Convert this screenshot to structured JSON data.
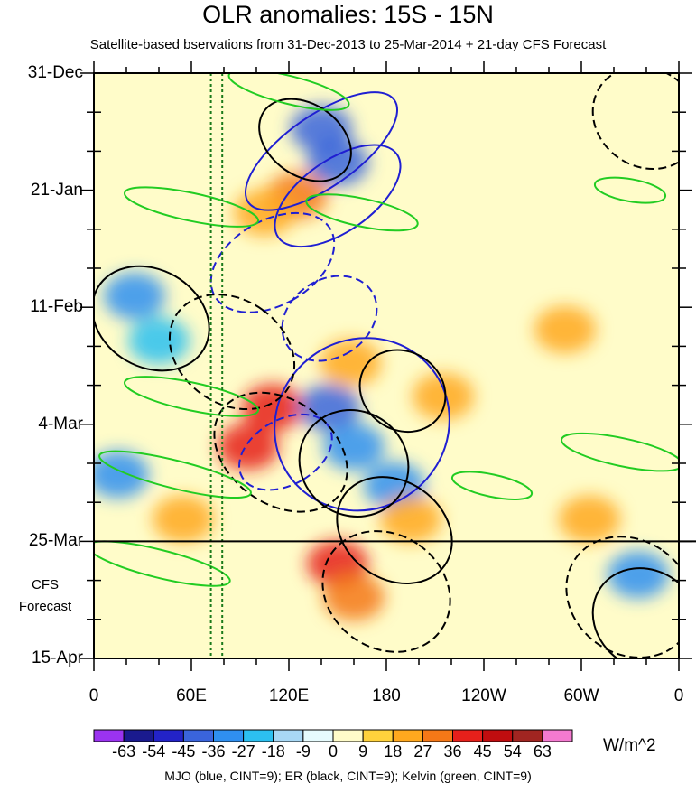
{
  "chart_data": {
    "type": "heatmap",
    "title": "OLR anomalies: 15S - 15N",
    "subtitle": "Satellite-based bservations from 31-Dec-2013 to 25-Mar-2014 + 21-day CFS Forecast",
    "x_tick_labels": [
      "0",
      "60E",
      "120E",
      "180",
      "120W",
      "60W",
      "0"
    ],
    "x_tick_longitudes": [
      0,
      60,
      120,
      180,
      240,
      300,
      360
    ],
    "y_tick_labels": [
      "31-Dec",
      "21-Jan",
      "11-Feb",
      "4-Mar",
      "25-Mar",
      "15-Apr"
    ],
    "y_tick_days": [
      0,
      21,
      42,
      63,
      84,
      105
    ],
    "observation_end_day": 84,
    "forecast_label_line1": "CFS",
    "forecast_label_line2": "Forecast",
    "reference_longitudes_dotted": [
      72,
      79
    ],
    "colorbar": {
      "tick_labels": [
        "-63",
        "-54",
        "-45",
        "-36",
        "-27",
        "-18",
        "-9",
        "0",
        "9",
        "18",
        "27",
        "36",
        "45",
        "54",
        "63"
      ],
      "colors": [
        "#9b33f0",
        "#1a1a8e",
        "#2323c8",
        "#3a64dc",
        "#2f8ff0",
        "#2cc0f0",
        "#a8d8f5",
        "#e6fbfd",
        "#fffcc9",
        "#ffd23c",
        "#ffa81e",
        "#f57817",
        "#e6201b",
        "#c00d0f",
        "#a12521",
        "#f47ad0"
      ],
      "units": "W/m^2"
    },
    "anomaly_blobs": [
      {
        "lon": 140,
        "day": 10,
        "value": -45
      },
      {
        "lon": 150,
        "day": 16,
        "value": -40
      },
      {
        "lon": 125,
        "day": 22,
        "value": 32
      },
      {
        "lon": 105,
        "day": 25,
        "value": 25
      },
      {
        "lon": 25,
        "day": 40,
        "value": -30
      },
      {
        "lon": 40,
        "day": 48,
        "value": -25
      },
      {
        "lon": 110,
        "day": 60,
        "value": 38
      },
      {
        "lon": 95,
        "day": 67,
        "value": 36
      },
      {
        "lon": 145,
        "day": 60,
        "value": -38
      },
      {
        "lon": 158,
        "day": 52,
        "value": 22
      },
      {
        "lon": 160,
        "day": 67,
        "value": -28
      },
      {
        "lon": 185,
        "day": 74,
        "value": -32
      },
      {
        "lon": 215,
        "day": 58,
        "value": 22
      },
      {
        "lon": 150,
        "day": 88,
        "value": 42
      },
      {
        "lon": 160,
        "day": 94,
        "value": 34
      },
      {
        "lon": 15,
        "day": 72,
        "value": -28
      },
      {
        "lon": 290,
        "day": 46,
        "value": 20
      },
      {
        "lon": 305,
        "day": 80,
        "value": 22
      },
      {
        "lon": 335,
        "day": 90,
        "value": -30
      },
      {
        "lon": 55,
        "day": 80,
        "value": 25
      },
      {
        "lon": 195,
        "day": 80,
        "value": 22
      }
    ],
    "filtered_contours": [
      {
        "wave": "MJO",
        "sign": "negative",
        "lon": 140,
        "day": 14,
        "rx": 22,
        "ry": 16,
        "angle": 55
      },
      {
        "wave": "MJO",
        "sign": "negative",
        "lon": 150,
        "day": 22,
        "rx": 22,
        "ry": 13,
        "angle": 55
      },
      {
        "wave": "MJO",
        "sign": "negative",
        "lon": 165,
        "day": 63,
        "rx": 52,
        "ry": 16,
        "angle": 52
      },
      {
        "wave": "MJO",
        "sign": "positive",
        "lon": 110,
        "day": 34,
        "rx": 26,
        "ry": 12,
        "angle": 60
      },
      {
        "wave": "MJO",
        "sign": "positive",
        "lon": 145,
        "day": 44,
        "rx": 24,
        "ry": 9,
        "angle": 58
      },
      {
        "wave": "MJO",
        "sign": "positive",
        "lon": 118,
        "day": 68,
        "rx": 20,
        "ry": 9,
        "angle": 60
      },
      {
        "wave": "ER",
        "sign": "negative",
        "lon": 130,
        "day": 12,
        "rx": 22,
        "ry": 9,
        "angle": -55
      },
      {
        "wave": "ER",
        "sign": "negative",
        "lon": 35,
        "day": 44,
        "rx": 30,
        "ry": 11,
        "angle": -60
      },
      {
        "wave": "ER",
        "sign": "negative",
        "lon": 190,
        "day": 57,
        "rx": 24,
        "ry": 8,
        "angle": -55
      },
      {
        "wave": "ER",
        "sign": "negative",
        "lon": 160,
        "day": 70,
        "rx": 32,
        "ry": 10,
        "angle": -55
      },
      {
        "wave": "ER",
        "sign": "negative",
        "lon": 185,
        "day": 82,
        "rx": 30,
        "ry": 11,
        "angle": -55
      },
      {
        "wave": "ER",
        "sign": "negative",
        "lon": 340,
        "day": 98,
        "rx": 30,
        "ry": 10,
        "angle": -55
      },
      {
        "wave": "ER",
        "sign": "positive",
        "lon": 85,
        "day": 50,
        "rx": 32,
        "ry": 12,
        "angle": -55
      },
      {
        "wave": "ER",
        "sign": "positive",
        "lon": 115,
        "day": 68,
        "rx": 32,
        "ry": 13,
        "angle": -55
      },
      {
        "wave": "ER",
        "sign": "positive",
        "lon": 180,
        "day": 93,
        "rx": 35,
        "ry": 12,
        "angle": -55
      },
      {
        "wave": "ER",
        "sign": "positive",
        "lon": 340,
        "day": 8,
        "rx": 30,
        "ry": 10,
        "angle": -55
      },
      {
        "wave": "ER",
        "sign": "positive",
        "lon": 330,
        "day": 94,
        "rx": 35,
        "ry": 12,
        "angle": -55
      },
      {
        "wave": "Kelvin",
        "sign": "negative",
        "lon": 120,
        "day": 3,
        "rx": 38,
        "ry": 2.5,
        "angle": 14
      },
      {
        "wave": "Kelvin",
        "sign": "negative",
        "lon": 60,
        "day": 24,
        "rx": 42,
        "ry": 2.5,
        "angle": 12
      },
      {
        "wave": "Kelvin",
        "sign": "negative",
        "lon": 165,
        "day": 25,
        "rx": 35,
        "ry": 2.5,
        "angle": 12
      },
      {
        "wave": "Kelvin",
        "sign": "negative",
        "lon": 60,
        "day": 58,
        "rx": 42,
        "ry": 2.5,
        "angle": 12
      },
      {
        "wave": "Kelvin",
        "sign": "negative",
        "lon": 50,
        "day": 72,
        "rx": 48,
        "ry": 2.5,
        "angle": 14
      },
      {
        "wave": "Kelvin",
        "sign": "negative",
        "lon": 40,
        "day": 88,
        "rx": 45,
        "ry": 2.5,
        "angle": 14
      },
      {
        "wave": "Kelvin",
        "sign": "negative",
        "lon": 245,
        "day": 74,
        "rx": 25,
        "ry": 2,
        "angle": 12
      },
      {
        "wave": "Kelvin",
        "sign": "negative",
        "lon": 325,
        "day": 68,
        "rx": 38,
        "ry": 2.5,
        "angle": 12
      },
      {
        "wave": "Kelvin",
        "sign": "negative",
        "lon": 330,
        "day": 21,
        "rx": 22,
        "ry": 2,
        "angle": 10
      }
    ],
    "footer": "MJO (blue, CINT=9); ER (black, CINT=9); Kelvin (green, CINT=9)"
  }
}
